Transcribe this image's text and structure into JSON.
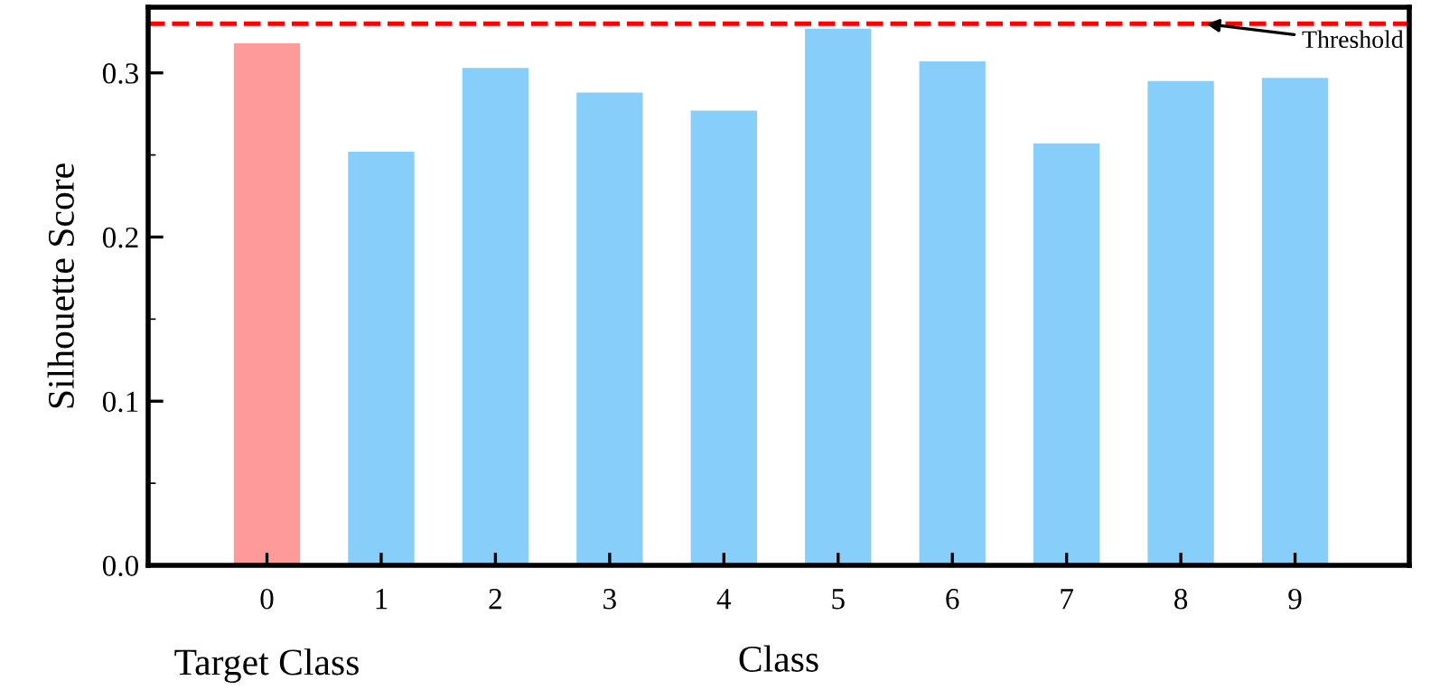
{
  "chart_data": {
    "type": "bar",
    "xlabel": "Class",
    "ylabel": "Silhouette Score",
    "categories": [
      "0",
      "1",
      "2",
      "3",
      "4",
      "5",
      "6",
      "7",
      "8",
      "9"
    ],
    "values": [
      0.318,
      0.252,
      0.303,
      0.288,
      0.277,
      0.327,
      0.307,
      0.257,
      0.295,
      0.297
    ],
    "colors": [
      "#ff9a9a",
      "#87cefa",
      "#87cefa",
      "#87cefa",
      "#87cefa",
      "#87cefa",
      "#87cefa",
      "#87cefa",
      "#87cefa",
      "#87cefa"
    ],
    "ylim": [
      0,
      0.34
    ],
    "yticks": [
      {
        "value": 0,
        "label": "0.0"
      },
      {
        "value": 0.1,
        "label": "0.1"
      },
      {
        "value": 0.2,
        "label": "0.2"
      },
      {
        "value": 0.3,
        "label": "0.3"
      }
    ],
    "ref_lines": [
      {
        "axis": "y",
        "value": 0.33,
        "label": "Threshold",
        "color": "#ff0000",
        "line_style": "dashed"
      }
    ],
    "annotations": [
      "Target Class"
    ],
    "grid": false,
    "legend": false
  }
}
